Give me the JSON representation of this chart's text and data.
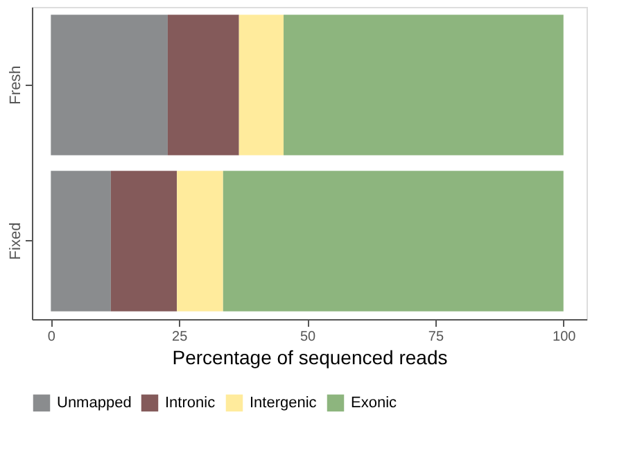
{
  "chart_data": {
    "type": "bar",
    "orientation": "horizontal",
    "stacked": true,
    "categories": [
      "Fresh",
      "Fixed"
    ],
    "series": [
      {
        "name": "Unmapped",
        "color": "#8a8c8e",
        "values": [
          22.8,
          11.7
        ]
      },
      {
        "name": "Intronic",
        "color": "#845a5a",
        "values": [
          13.9,
          12.9
        ]
      },
      {
        "name": "Intergenic",
        "color": "#ffeb9c",
        "values": [
          8.7,
          9.0
        ]
      },
      {
        "name": "Exonic",
        "color": "#8db57e",
        "values": [
          54.6,
          66.4
        ]
      }
    ],
    "xlabel": "Percentage of sequenced reads",
    "xlim": [
      -3.7,
      104.5
    ],
    "xticks": [
      0,
      25,
      50,
      75,
      100
    ],
    "grid": false,
    "legend": "bottom"
  }
}
